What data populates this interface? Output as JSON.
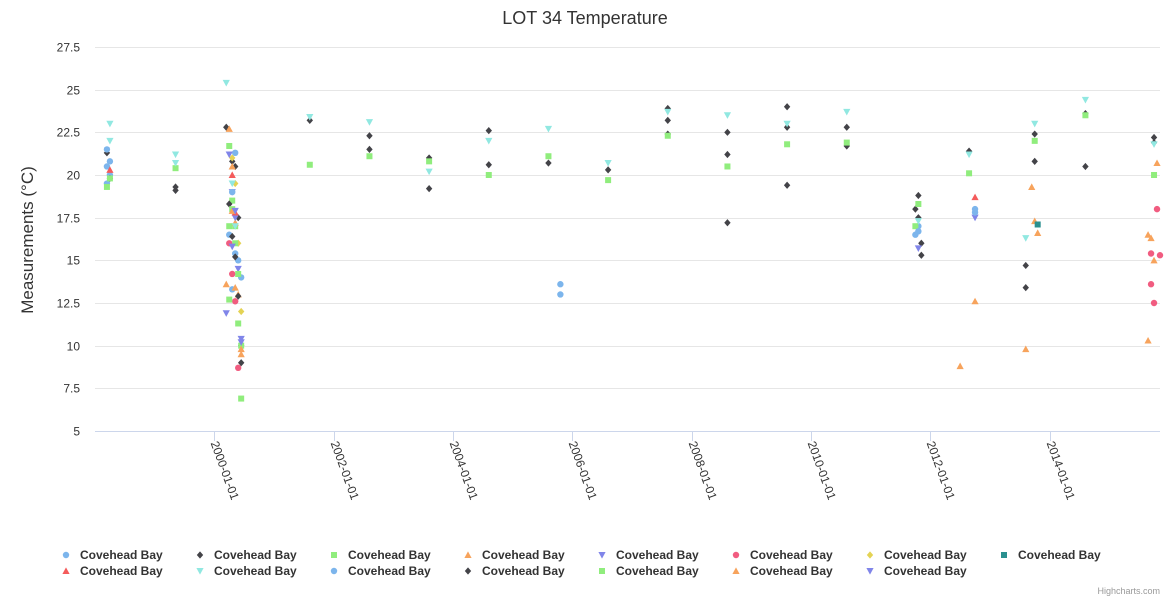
{
  "chart_data": {
    "type": "scatter",
    "title": "LOT 34 Temperature",
    "ylabel": "Measurements (°C)",
    "xlabel": "",
    "ylim": [
      5,
      27.5
    ],
    "yticks": [
      5,
      7.5,
      10,
      12.5,
      15,
      17.5,
      20,
      22.5,
      25,
      27.5
    ],
    "ytick_labels": [
      "5",
      "7.5",
      "10",
      "12.5",
      "15",
      "17.5",
      "20",
      "22.5",
      "25",
      "27.5"
    ],
    "xlim": [
      1998.0,
      2015.85
    ],
    "xticks": [
      2000.0,
      2002.0,
      2004.0,
      2006.0,
      2008.0,
      2010.0,
      2012.0,
      2014.0
    ],
    "xtick_labels": [
      "2000-01-01",
      "2002-01-01",
      "2004-01-01",
      "2006-01-01",
      "2008-01-01",
      "2010-01-01",
      "2012-01-01",
      "2014-01-01"
    ],
    "credits": "Highcharts.com",
    "series": [
      {
        "name": "Covehead Bay",
        "color": "#7cb5ec",
        "marker": "circle",
        "data": [
          [
            1998.2,
            20.5
          ],
          [
            1998.2,
            19.5
          ],
          [
            1998.25,
            20.0
          ],
          [
            2000.3,
            13.3
          ],
          [
            2000.35,
            21.3
          ],
          [
            2000.4,
            15.0
          ],
          [
            2000.45,
            14.0
          ],
          [
            2005.8,
            13.6
          ],
          [
            2005.8,
            13.0
          ],
          [
            2011.75,
            16.5
          ],
          [
            2011.8,
            17.0
          ],
          [
            2012.75,
            18.0
          ]
        ]
      },
      {
        "name": "Covehead Bay",
        "color": "#434348",
        "marker": "diamond",
        "data": [
          [
            1998.2,
            21.3
          ],
          [
            1998.25,
            19.8
          ],
          [
            1999.35,
            19.3
          ],
          [
            1999.35,
            19.1
          ],
          [
            2000.2,
            22.8
          ],
          [
            2000.3,
            20.8
          ],
          [
            2000.35,
            20.5
          ],
          [
            2000.4,
            17.5
          ],
          [
            2000.45,
            10.0
          ],
          [
            2001.6,
            23.2
          ],
          [
            2002.6,
            22.3
          ],
          [
            2002.6,
            21.5
          ],
          [
            2003.6,
            21.0
          ],
          [
            2003.6,
            19.2
          ],
          [
            2004.6,
            22.6
          ],
          [
            2004.6,
            20.6
          ],
          [
            2005.6,
            20.7
          ],
          [
            2006.6,
            20.3
          ],
          [
            2007.6,
            23.9
          ],
          [
            2007.6,
            23.2
          ],
          [
            2007.6,
            22.4
          ],
          [
            2008.6,
            22.5
          ],
          [
            2008.6,
            21.2
          ],
          [
            2008.6,
            17.2
          ],
          [
            2009.6,
            24.0
          ],
          [
            2009.6,
            22.8
          ],
          [
            2009.6,
            19.4
          ],
          [
            2010.6,
            22.8
          ],
          [
            2010.6,
            21.7
          ],
          [
            2011.75,
            18.0
          ],
          [
            2011.8,
            17.5
          ],
          [
            2011.85,
            16.0
          ],
          [
            2012.65,
            21.4
          ],
          [
            2013.6,
            14.7
          ],
          [
            2013.6,
            13.4
          ],
          [
            2013.75,
            22.4
          ],
          [
            2013.75,
            20.8
          ],
          [
            2014.6,
            23.6
          ],
          [
            2014.6,
            20.5
          ],
          [
            2015.75,
            22.2
          ],
          [
            2015.75,
            21.9
          ]
        ]
      },
      {
        "name": "Covehead Bay",
        "color": "#90ed7d",
        "marker": "square",
        "data": [
          [
            1998.2,
            19.3
          ],
          [
            1998.25,
            19.8
          ],
          [
            1999.35,
            20.4
          ],
          [
            2000.25,
            21.7
          ],
          [
            2000.3,
            18.5
          ],
          [
            2000.35,
            17.0
          ],
          [
            2000.4,
            11.3
          ],
          [
            2000.45,
            6.9
          ],
          [
            2001.6,
            20.6
          ],
          [
            2002.6,
            21.1
          ],
          [
            2003.6,
            20.8
          ],
          [
            2004.6,
            20.0
          ],
          [
            2005.6,
            21.1
          ],
          [
            2006.6,
            19.7
          ],
          [
            2007.6,
            22.3
          ],
          [
            2008.6,
            20.5
          ],
          [
            2009.6,
            21.8
          ],
          [
            2010.6,
            21.9
          ],
          [
            2011.75,
            17.0
          ],
          [
            2011.8,
            18.3
          ],
          [
            2012.65,
            20.1
          ],
          [
            2013.75,
            22.0
          ],
          [
            2014.6,
            23.5
          ],
          [
            2015.75,
            20.0
          ]
        ]
      },
      {
        "name": "Covehead Bay",
        "color": "#f7a35c",
        "marker": "triangle",
        "data": [
          [
            2000.2,
            13.6
          ],
          [
            2000.3,
            20.5
          ],
          [
            2000.35,
            17.2
          ],
          [
            2000.4,
            13.0
          ],
          [
            2000.45,
            9.5
          ],
          [
            2012.5,
            8.8
          ],
          [
            2012.75,
            12.6
          ],
          [
            2013.6,
            9.8
          ],
          [
            2013.7,
            19.3
          ],
          [
            2013.75,
            17.3
          ],
          [
            2015.65,
            16.5
          ],
          [
            2015.7,
            16.3
          ],
          [
            2015.75,
            15.0
          ],
          [
            2015.8,
            20.7
          ]
        ]
      },
      {
        "name": "Covehead Bay",
        "color": "#8085e9",
        "marker": "triangle-down",
        "data": [
          [
            2000.2,
            11.9
          ],
          [
            2000.3,
            19.0
          ],
          [
            2000.35,
            17.5
          ],
          [
            2000.4,
            14.5
          ],
          [
            2000.45,
            10.4
          ],
          [
            2011.8,
            15.7
          ],
          [
            2012.75,
            17.5
          ]
        ]
      },
      {
        "name": "Covehead Bay",
        "color": "#f15c80",
        "marker": "circle",
        "data": [
          [
            2000.25,
            16.0
          ],
          [
            2000.3,
            14.2
          ],
          [
            2000.35,
            12.6
          ],
          [
            2000.4,
            8.7
          ],
          [
            2015.7,
            15.4
          ],
          [
            2015.7,
            13.6
          ],
          [
            2015.75,
            12.5
          ],
          [
            2015.8,
            18.0
          ],
          [
            2015.85,
            15.3
          ]
        ]
      },
      {
        "name": "Covehead Bay",
        "color": "#e4d354",
        "marker": "diamond",
        "data": [
          [
            2000.3,
            21.0
          ],
          [
            2000.35,
            19.5
          ],
          [
            2000.4,
            16.0
          ],
          [
            2000.45,
            12.0
          ]
        ]
      },
      {
        "name": "Covehead Bay",
        "color": "#2b908f",
        "marker": "square",
        "data": [
          [
            2013.8,
            17.1
          ]
        ]
      },
      {
        "name": "Covehead Bay",
        "color": "#f45b5b",
        "marker": "triangle",
        "data": [
          [
            1998.25,
            20.3
          ],
          [
            2000.3,
            20.0
          ],
          [
            2000.35,
            17.8
          ],
          [
            2012.75,
            18.7
          ]
        ]
      },
      {
        "name": "Covehead Bay",
        "color": "#91e8e1",
        "marker": "triangle-down",
        "data": [
          [
            1998.25,
            23.0
          ],
          [
            1998.25,
            22.0
          ],
          [
            1999.35,
            21.2
          ],
          [
            1999.35,
            20.7
          ],
          [
            2000.2,
            25.4
          ],
          [
            2000.3,
            19.5
          ],
          [
            2000.35,
            17.0
          ],
          [
            2001.6,
            23.4
          ],
          [
            2002.6,
            23.1
          ],
          [
            2003.6,
            20.2
          ],
          [
            2004.6,
            22.0
          ],
          [
            2005.6,
            22.7
          ],
          [
            2006.6,
            20.7
          ],
          [
            2007.6,
            23.7
          ],
          [
            2008.6,
            23.5
          ],
          [
            2009.6,
            23.0
          ],
          [
            2010.6,
            23.7
          ],
          [
            2011.8,
            17.3
          ],
          [
            2012.65,
            21.2
          ],
          [
            2013.6,
            16.3
          ],
          [
            2013.75,
            23.0
          ],
          [
            2014.6,
            24.4
          ],
          [
            2015.75,
            21.8
          ]
        ]
      },
      {
        "name": "Covehead Bay",
        "color": "#7cb5ec",
        "marker": "circle",
        "data": [
          [
            1998.2,
            21.5
          ],
          [
            1998.25,
            20.8
          ],
          [
            2000.25,
            16.5
          ],
          [
            2000.3,
            19.0
          ],
          [
            2000.35,
            15.4
          ],
          [
            2011.8,
            16.7
          ],
          [
            2012.75,
            17.8
          ]
        ]
      },
      {
        "name": "Covehead Bay",
        "color": "#434348",
        "marker": "diamond",
        "data": [
          [
            2000.25,
            18.3
          ],
          [
            2000.3,
            16.4
          ],
          [
            2000.35,
            15.2
          ],
          [
            2000.4,
            12.9
          ],
          [
            2000.45,
            9.0
          ],
          [
            2011.8,
            18.8
          ],
          [
            2011.85,
            15.3
          ]
        ]
      },
      {
        "name": "Covehead Bay",
        "color": "#90ed7d",
        "marker": "square",
        "data": [
          [
            2000.25,
            17.0
          ],
          [
            2000.3,
            18.0
          ],
          [
            2000.35,
            16.0
          ],
          [
            2000.4,
            14.2
          ],
          [
            2000.25,
            12.7
          ],
          [
            2000.45,
            10.0
          ]
        ]
      },
      {
        "name": "Covehead Bay",
        "color": "#f7a35c",
        "marker": "triangle",
        "data": [
          [
            2000.25,
            22.7
          ],
          [
            2000.3,
            17.9
          ],
          [
            2000.35,
            13.4
          ],
          [
            2000.45,
            9.8
          ],
          [
            2013.8,
            16.6
          ],
          [
            2015.65,
            10.3
          ]
        ]
      },
      {
        "name": "Covehead Bay",
        "color": "#8085e9",
        "marker": "triangle-down",
        "data": [
          [
            2000.25,
            21.2
          ],
          [
            2000.3,
            15.8
          ],
          [
            2000.35,
            17.9
          ],
          [
            2000.45,
            10.2
          ]
        ]
      }
    ]
  }
}
